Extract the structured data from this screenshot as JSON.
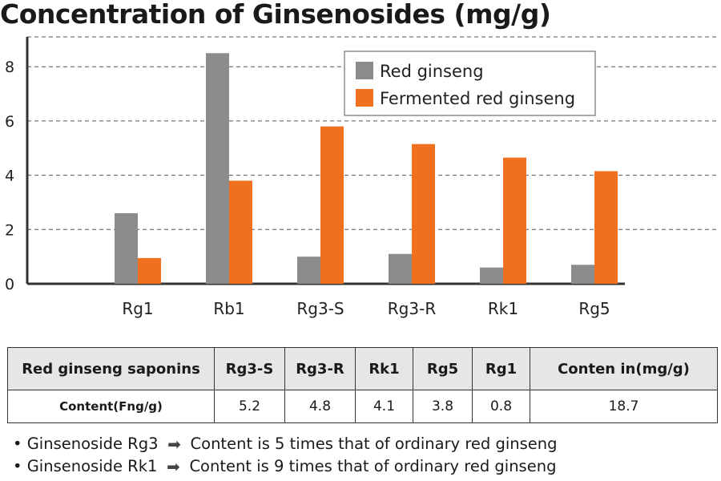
{
  "chart_data": {
    "type": "bar",
    "title": "Concentration of Ginsenosides (mg/g)",
    "categories": [
      "Rg1",
      "Rb1",
      "Rg3-S",
      "Rg3-R",
      "Rk1",
      "Rg5"
    ],
    "series": [
      {
        "name": "Red ginseng",
        "color": "#8c8c8c",
        "values": [
          2.6,
          8.5,
          1.0,
          1.1,
          0.6,
          0.7
        ]
      },
      {
        "name": "Fermented red ginseng",
        "color": "#f07020",
        "values": [
          0.95,
          3.8,
          5.8,
          5.15,
          4.65,
          4.15
        ]
      }
    ],
    "yticks": [
      0,
      2,
      4,
      6,
      8
    ],
    "ylim": [
      0,
      9.1
    ],
    "grid": true,
    "legend_position": "top-right"
  },
  "table": {
    "headers": [
      "Red ginseng saponins",
      "Rg3-S",
      "Rg3-R",
      "Rk1",
      "Rg5",
      "Rg1",
      "Conten in(mg/g)"
    ],
    "row": [
      "Content(Fng/g)",
      "5.2",
      "4.8",
      "4.1",
      "3.8",
      "0.8",
      "18.7"
    ]
  },
  "notes": [
    {
      "label": "• Ginsenoside Rg3",
      "text": "Content is 5 times that of ordinary red ginseng"
    },
    {
      "label": "• Ginsenoside Rk1",
      "text": "Content is 9 times that of ordinary red ginseng"
    }
  ]
}
